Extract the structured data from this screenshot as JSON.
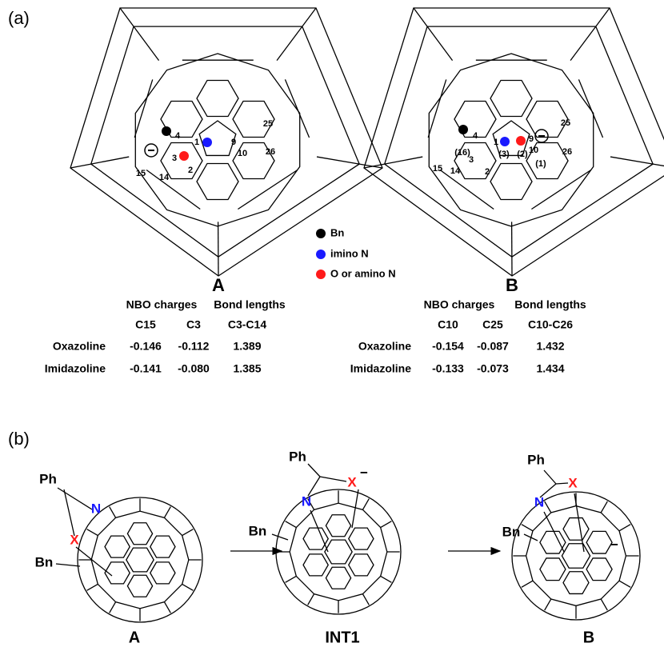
{
  "panel_a": {
    "label": "(a)",
    "structure_A": {
      "name": "A",
      "atoms": [
        "4",
        "1",
        "9",
        "25",
        "10",
        "26",
        "3",
        "2",
        "15",
        "14"
      ]
    },
    "structure_B": {
      "name": "B",
      "atoms": [
        "4",
        "(16)",
        "1",
        "(3)",
        "9",
        "(2)",
        "25",
        "10",
        "(1)",
        "26",
        "15",
        "14",
        "3",
        "2"
      ]
    },
    "legend": [
      "Bn",
      "imino N",
      "O or amino N"
    ],
    "table_A": {
      "headers": [
        "NBO charges",
        "Bond lengths"
      ],
      "columns": [
        "C15",
        "C3",
        "C3-C14"
      ],
      "rows": [
        [
          "Oxazoline",
          "-0.146",
          "-0.112",
          "1.389"
        ],
        [
          "Imidazoline",
          "-0.141",
          "-0.080",
          "1.385"
        ]
      ]
    },
    "table_B": {
      "headers": [
        "NBO charges",
        "Bond lengths"
      ],
      "columns": [
        "C10",
        "C25",
        "C10-C26"
      ],
      "rows": [
        [
          "Oxazoline",
          "-0.154",
          "-0.087",
          "1.432"
        ],
        [
          "Imidazoline",
          "-0.133",
          "-0.073",
          "1.434"
        ]
      ]
    }
  },
  "panel_b": {
    "label": "(b)",
    "structures": [
      {
        "name": "A",
        "substituents": [
          "Ph",
          "N",
          "X",
          "Bn"
        ]
      },
      {
        "name": "INT1",
        "substituents": [
          "Ph",
          "X",
          "−",
          "N",
          "Bn"
        ]
      },
      {
        "name": "B",
        "substituents": [
          "Ph",
          "N",
          "X",
          "Bn",
          "−"
        ]
      }
    ]
  }
}
